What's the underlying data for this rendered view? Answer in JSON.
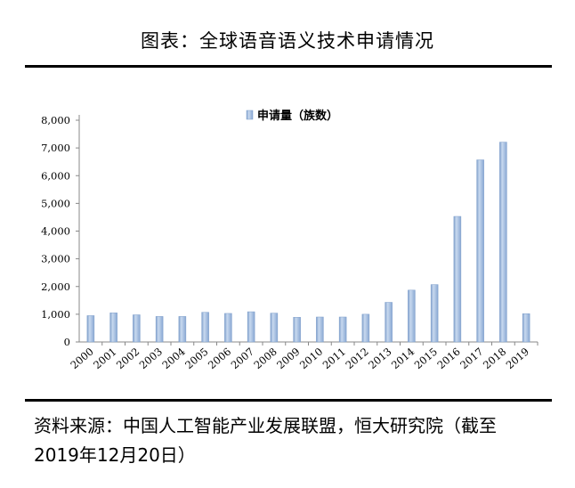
{
  "figure": {
    "title": "图表：全球语音语义技术申请情况",
    "source": "资料来源：中国人工智能产业发展联盟，恒大研究院（截至2019年12月20日）"
  },
  "chart_data": {
    "type": "bar",
    "categories": [
      "2000",
      "2001",
      "2002",
      "2003",
      "2004",
      "2005",
      "2006",
      "2007",
      "2008",
      "2009",
      "2010",
      "2011",
      "2012",
      "2013",
      "2014",
      "2015",
      "2016",
      "2017",
      "2018",
      "2019"
    ],
    "series": [
      {
        "name": "申请量（族数）",
        "values": [
          950,
          1050,
          980,
          920,
          920,
          1070,
          1030,
          1090,
          1040,
          890,
          900,
          900,
          1000,
          1430,
          1870,
          2070,
          4530,
          6570,
          7210,
          1020
        ],
        "color": "#9DB9DD"
      }
    ],
    "yticks": [
      "0",
      "1,000",
      "2,000",
      "3,000",
      "4,000",
      "5,000",
      "6,000",
      "7,000",
      "8,000"
    ],
    "ylim": [
      0,
      8000
    ],
    "legend_position": "top-center",
    "grid": false
  }
}
